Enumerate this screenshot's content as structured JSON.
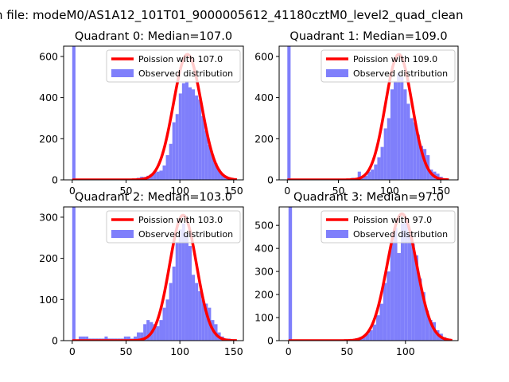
{
  "figure": {
    "suptitle": "n file: modeM0/AS1A12_101T01_9000005612_41180cztM0_level2_quad_clean"
  },
  "colors": {
    "observed": "#7f7ffb",
    "poisson": "#ff0000",
    "axes": "#000000"
  },
  "legend": {
    "observed_label": "Observed distribution"
  },
  "chart_data": [
    {
      "type": "bar",
      "title": "Quadrant 0: Median=107.0",
      "xlim": [
        -8,
        159
      ],
      "ylim": [
        0,
        650
      ],
      "xticks": [
        0,
        50,
        100,
        150
      ],
      "yticks": [
        0,
        200,
        400,
        600
      ],
      "legend_position": "upper right",
      "bin_width": 3,
      "zero_bin": 650,
      "histogram": {
        "x": [
          54,
          57,
          60,
          63,
          66,
          69,
          72,
          75,
          78,
          81,
          84,
          87,
          90,
          93,
          96,
          99,
          102,
          105,
          108,
          111,
          114,
          117,
          120,
          123,
          126,
          129,
          132,
          135,
          138,
          141,
          144,
          147
        ],
        "y": [
          5,
          5,
          10,
          15,
          14,
          20,
          28,
          35,
          40,
          45,
          70,
          120,
          175,
          280,
          320,
          420,
          470,
          480,
          450,
          440,
          410,
          390,
          310,
          240,
          170,
          120,
          80,
          50,
          30,
          20,
          10,
          5
        ]
      },
      "poisson": {
        "label": "Poission with 107.0",
        "lambda": 107.0,
        "peak": 610,
        "sigma": 13.0,
        "x_range": [
          0,
          153
        ]
      }
    },
    {
      "type": "bar",
      "title": "Quadrant 1: Median=109.0",
      "xlim": [
        -8,
        167
      ],
      "ylim": [
        0,
        650
      ],
      "xticks": [
        0,
        50,
        100,
        150
      ],
      "yticks": [
        0,
        200,
        400,
        600
      ],
      "legend_position": "upper right",
      "bin_width": 3.2,
      "zero_bin": 650,
      "histogram": {
        "x": [
          56,
          59.2,
          62.4,
          65.6,
          68.8,
          72,
          75.2,
          78.4,
          81.6,
          84.8,
          88,
          91.2,
          94.4,
          97.6,
          100.8,
          104,
          107.2,
          110.4,
          113.6,
          116.8,
          120,
          123.2,
          126.4,
          129.6,
          132.8,
          136,
          139.2,
          142.4,
          145.6,
          148.8,
          152
        ],
        "y": [
          5,
          5,
          10,
          5,
          40,
          10,
          20,
          40,
          50,
          75,
          110,
          160,
          250,
          300,
          440,
          480,
          520,
          500,
          440,
          370,
          300,
          280,
          220,
          165,
          150,
          120,
          50,
          40,
          30,
          15,
          5
        ]
      },
      "poisson": {
        "label": "Poission with 109.0",
        "lambda": 109.0,
        "peak": 610,
        "sigma": 13.0,
        "x_range": [
          0,
          158
        ]
      }
    },
    {
      "type": "bar",
      "title": "Quadrant 2: Median=103.0",
      "xlim": [
        -8,
        159
      ],
      "ylim": [
        0,
        325
      ],
      "xticks": [
        0,
        50,
        100,
        150
      ],
      "yticks": [
        0,
        100,
        200,
        300
      ],
      "legend_position": "upper right",
      "bin_width": 3,
      "zero_bin": 325,
      "histogram": {
        "x": [
          6,
          9,
          12,
          15,
          18,
          21,
          24,
          27,
          30,
          33,
          36,
          39,
          42,
          45,
          48,
          51,
          54,
          57,
          60,
          63,
          66,
          69,
          72,
          75,
          78,
          81,
          84,
          87,
          90,
          93,
          96,
          99,
          102,
          105,
          108,
          111,
          114,
          117,
          120,
          123,
          126,
          129,
          132,
          135,
          138,
          141,
          144,
          147
        ],
        "y": [
          10,
          10,
          10,
          5,
          5,
          5,
          5,
          5,
          10,
          5,
          5,
          5,
          5,
          5,
          10,
          10,
          5,
          10,
          20,
          20,
          40,
          50,
          45,
          40,
          35,
          50,
          80,
          100,
          140,
          180,
          240,
          270,
          285,
          260,
          230,
          160,
          140,
          120,
          100,
          90,
          80,
          50,
          40,
          20,
          10,
          5,
          5,
          3
        ]
      },
      "poisson": {
        "label": "Poission with 103.0",
        "lambda": 103.0,
        "peak": 305,
        "sigma": 12.5,
        "x_range": [
          0,
          153
        ]
      }
    },
    {
      "type": "bar",
      "title": "Quadrant 3: Median=97.0",
      "xlim": [
        -8,
        145
      ],
      "ylim": [
        0,
        580
      ],
      "xticks": [
        0,
        50,
        100
      ],
      "yticks": [
        0,
        100,
        200,
        300,
        400,
        500
      ],
      "legend_position": "upper right",
      "bin_width": 3,
      "zero_bin": 580,
      "histogram": {
        "x": [
          48,
          51,
          54,
          57,
          60,
          63,
          66,
          69,
          72,
          75,
          78,
          81,
          84,
          87,
          90,
          93,
          96,
          99,
          102,
          105,
          108,
          111,
          114,
          117,
          120,
          123,
          126,
          129,
          132,
          135
        ],
        "y": [
          5,
          5,
          5,
          10,
          15,
          20,
          30,
          45,
          70,
          110,
          160,
          250,
          300,
          430,
          490,
          380,
          510,
          530,
          470,
          420,
          370,
          270,
          210,
          130,
          90,
          80,
          45,
          30,
          15,
          5
        ]
      },
      "poisson": {
        "label": "Poission with 97.0",
        "lambda": 97.0,
        "peak": 550,
        "sigma": 12.5,
        "x_range": [
          0,
          140
        ]
      }
    }
  ]
}
